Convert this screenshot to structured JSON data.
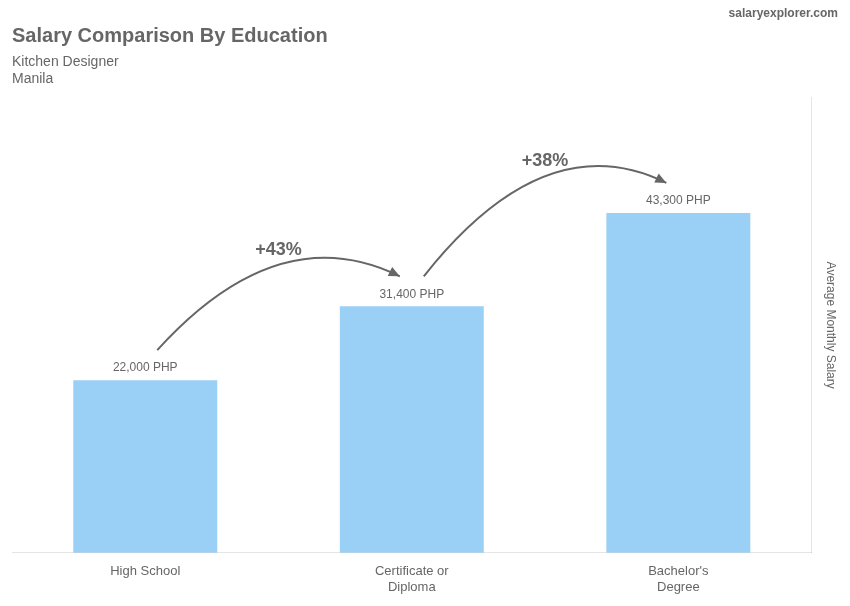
{
  "chart_data": {
    "type": "bar",
    "title": "Salary Comparison By Education",
    "subtitle": "Kitchen Designer",
    "location": "Manila",
    "watermark": "salaryexplorer.com",
    "ylabel": "Average Monthly Salary",
    "categories": [
      "High School",
      "Certificate or\nDiploma",
      "Bachelor's\nDegree"
    ],
    "values": [
      22000,
      31400,
      43300
    ],
    "value_labels": [
      "22,000 PHP",
      "31,400 PHP",
      "43,300 PHP"
    ],
    "data_labels": true,
    "annotations": [
      {
        "text": "+43%",
        "from": "High School",
        "to": "Certificate or\nDiploma"
      },
      {
        "text": "+38%",
        "from": "Certificate or\nDiploma",
        "to": "Bachelor's\nDegree"
      }
    ],
    "ylim": [
      0,
      58000
    ],
    "grid": false,
    "tick_labels": "x"
  }
}
